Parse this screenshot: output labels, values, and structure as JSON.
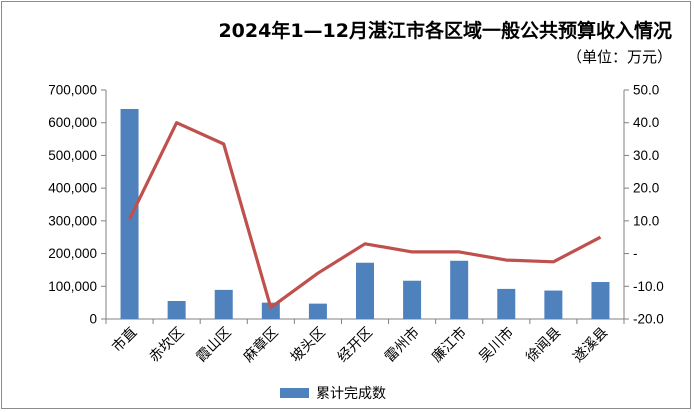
{
  "chart_data": {
    "type": "bar",
    "title": "2024年1—12月湛江市各区域一般公共预算收入情况",
    "subtitle": "（单位：万元）",
    "categories": [
      "市直",
      "赤坎区",
      "霞山区",
      "麻章区",
      "坡头区",
      "经开区",
      "雷州市",
      "廉江市",
      "吴川市",
      "徐闻县",
      "遂溪县"
    ],
    "series": [
      {
        "name": "累计完成数",
        "type": "bar",
        "axis": "left",
        "color": "#4f81bd",
        "values": [
          642000,
          55000,
          89000,
          50000,
          47000,
          172000,
          117000,
          178000,
          92000,
          87000,
          113000
        ]
      },
      {
        "name": "",
        "type": "line",
        "axis": "right",
        "color": "#c0504d",
        "values": [
          10.5,
          40.0,
          33.5,
          -16.5,
          -6.0,
          3.0,
          0.5,
          0.5,
          -2.0,
          -2.5,
          5.0
        ]
      }
    ],
    "ylim": [
      0,
      700000
    ],
    "y2lim": [
      -20,
      50
    ],
    "yticks": [
      "0",
      "100,000",
      "200,000",
      "300,000",
      "400,000",
      "500,000",
      "600,000",
      "700,000"
    ],
    "y2ticks": [
      "-20.0",
      "-10.0",
      "-",
      "10.0",
      "20.0",
      "30.0",
      "40.0",
      "50.0"
    ],
    "legend": "bottom",
    "grid": false
  }
}
